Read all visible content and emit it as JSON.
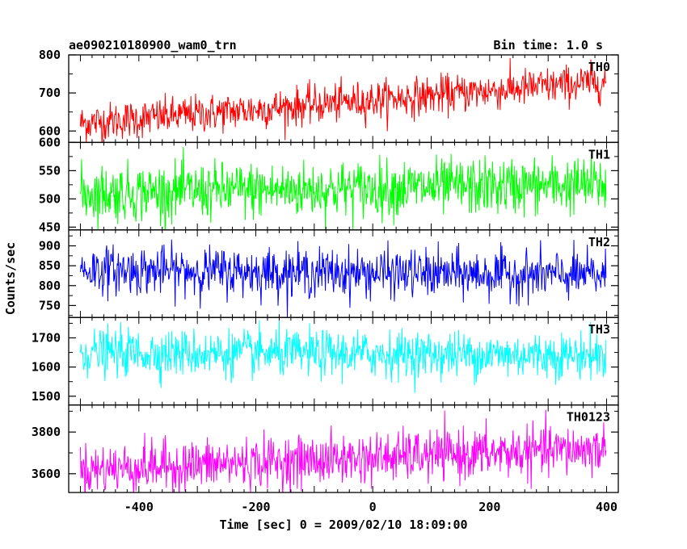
{
  "header": {
    "left_title": "ae090210180900_wam0_trn",
    "right_title": "Bin time: 1.0 s"
  },
  "chart_data": {
    "type": "line",
    "xlabel": "Time [sec] 0 = 2009/02/10 18:09:00",
    "ylabel": "Counts/sec",
    "xlim": [
      -520,
      420
    ],
    "x_ticks": [
      -400,
      -200,
      0,
      200,
      400
    ],
    "x_range": [
      -500,
      399
    ],
    "bin_time_s": 1.0,
    "panels": [
      {
        "name": "TH0",
        "color": "#ff0000",
        "ylim": [
          570,
          800
        ],
        "y_ticks": [
          600,
          700,
          800
        ],
        "trend_start": 620,
        "trend_end": 730,
        "noise_sd": 25
      },
      {
        "name": "TH1",
        "color": "#00ff00",
        "ylim": [
          445,
          600
        ],
        "y_ticks": [
          450,
          500,
          550,
          600
        ],
        "trend_start": 510,
        "trend_end": 525,
        "noise_sd": 25
      },
      {
        "name": "TH2",
        "color": "#0000ff",
        "ylim": [
          720,
          940
        ],
        "y_ticks": [
          750,
          800,
          850,
          900
        ],
        "trend_start": 840,
        "trend_end": 825,
        "noise_sd": 30
      },
      {
        "name": "TH3",
        "color": "#00ffff",
        "ylim": [
          1470,
          1770
        ],
        "y_ticks": [
          1500,
          1600,
          1700
        ],
        "trend_start": 1650,
        "trend_end": 1640,
        "noise_sd": 40
      },
      {
        "name": "TH0123",
        "color": "#ff00ff",
        "ylim": [
          3510,
          3930
        ],
        "y_ticks": [
          3600,
          3800
        ],
        "trend_start": 3620,
        "trend_end": 3720,
        "noise_sd": 60
      }
    ]
  }
}
